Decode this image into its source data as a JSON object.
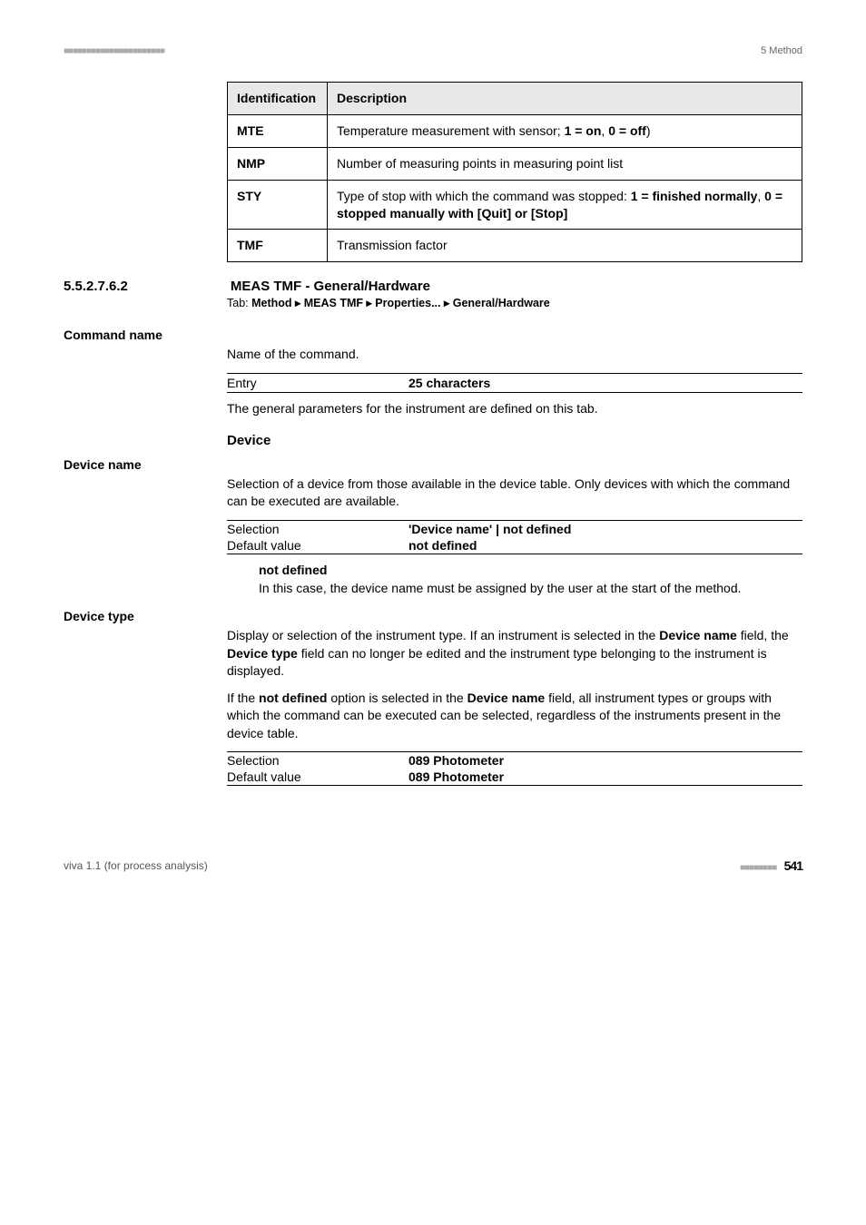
{
  "header": {
    "dashes": "■■■■■■■■■■■■■■■■■■■■■■",
    "section_ref": "5 Method"
  },
  "spec_table": {
    "col_a": "Identifica­tion",
    "col_b": "Description",
    "rows": [
      {
        "id": "MTE",
        "desc_pre": "Temperature measurement with sensor; ",
        "b1": "1 = on",
        "m": ", ",
        "b2": "0 = off",
        "desc_post": ")"
      },
      {
        "id": "NMP",
        "desc_pre": "Number of measuring points in measuring point list",
        "b1": "",
        "m": "",
        "b2": "",
        "desc_post": ""
      },
      {
        "id": "STY",
        "desc_pre": "Type of stop with which the command was stopped: ",
        "b1": "1 = finished normally",
        "m": ", ",
        "b2": "0 = stopped manually with [Quit] or [Stop]",
        "desc_post": ""
      },
      {
        "id": "TMF",
        "desc_pre": "Transmission factor",
        "b1": "",
        "m": "",
        "b2": "",
        "desc_post": ""
      }
    ]
  },
  "section": {
    "num": "5.5.2.7.6.2",
    "title": "MEAS TMF - General/Hardware",
    "tab_prefix": "Tab: ",
    "tab_path": "Method ▸ MEAS TMF ▸ Properties... ▸ General/Hardware"
  },
  "command_name": {
    "label": "Command name",
    "text": "Name of the command.",
    "entry_k": "Entry",
    "entry_v": "25 characters",
    "after": "The general parameters for the instrument are defined on this tab."
  },
  "device_heading": "Device",
  "device_name": {
    "label": "Device name",
    "text": "Selection of a device from those available in the device table. Only devices with which the command can be executed are available.",
    "sel_k": "Selection",
    "sel_v": "'Device name' | not defined",
    "def_k": "Default value",
    "def_v": "not defined",
    "term": "not defined",
    "term_text": "In this case, the device name must be assigned by the user at the start of the method."
  },
  "device_type": {
    "label": "Device type",
    "p1_a": "Display or selection of the instrument type. If an instrument is selected in the ",
    "p1_b1": "Device name",
    "p1_b": " field, the ",
    "p1_b2": "Device type",
    "p1_c": " field can no longer be edited and the instrument type belonging to the instrument is displayed.",
    "p2_a": "If the ",
    "p2_b1": "not defined",
    "p2_b": " option is selected in the ",
    "p2_b2": "Device name",
    "p2_c": " field, all instrument types or groups with which the command can be executed can be selected, regardless of the instruments present in the device table.",
    "sel_k": "Selection",
    "sel_v": "089 Photometer",
    "def_k": "Default value",
    "def_v": "089 Photometer"
  },
  "footer": {
    "left": "viva 1.1 (for process analysis)",
    "dashes": "■■■■■■■■",
    "page": "541"
  }
}
